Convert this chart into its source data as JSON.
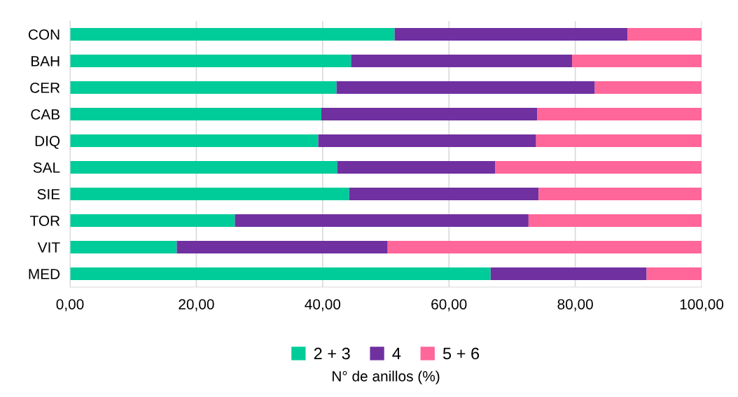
{
  "chart_data": {
    "type": "bar",
    "orientation": "horizontal",
    "stacked": true,
    "categories": [
      "CON",
      "BAH",
      "CER",
      "CAB",
      "DIQ",
      "SAL",
      "SIE",
      "TOR",
      "VIT",
      "MED"
    ],
    "series": [
      {
        "name": "2 + 3",
        "color": "#00cc99",
        "values": [
          51.4,
          44.5,
          42.2,
          39.8,
          39.3,
          42.3,
          44.2,
          26.1,
          16.9,
          66.6
        ]
      },
      {
        "name": "4",
        "color": "#7030a0",
        "values": [
          36.9,
          35.0,
          40.9,
          34.2,
          34.5,
          25.0,
          30.0,
          46.5,
          33.4,
          24.7
        ]
      },
      {
        "name": "5 + 6",
        "color": "#ff6699",
        "values": [
          11.7,
          20.5,
          16.9,
          26.0,
          26.2,
          32.7,
          25.8,
          27.4,
          49.7,
          8.7
        ]
      }
    ],
    "xlim": [
      0,
      100
    ],
    "xticks": [
      {
        "value": 0,
        "label": "0,00"
      },
      {
        "value": 20,
        "label": "20,00"
      },
      {
        "value": 40,
        "label": "40,00"
      },
      {
        "value": 60,
        "label": "60,00"
      },
      {
        "value": 80,
        "label": "80,00"
      },
      {
        "value": 100,
        "label": "100,00"
      }
    ],
    "xlabel": "N° de anillos (%)",
    "grid": "x",
    "legend": "bottom"
  }
}
